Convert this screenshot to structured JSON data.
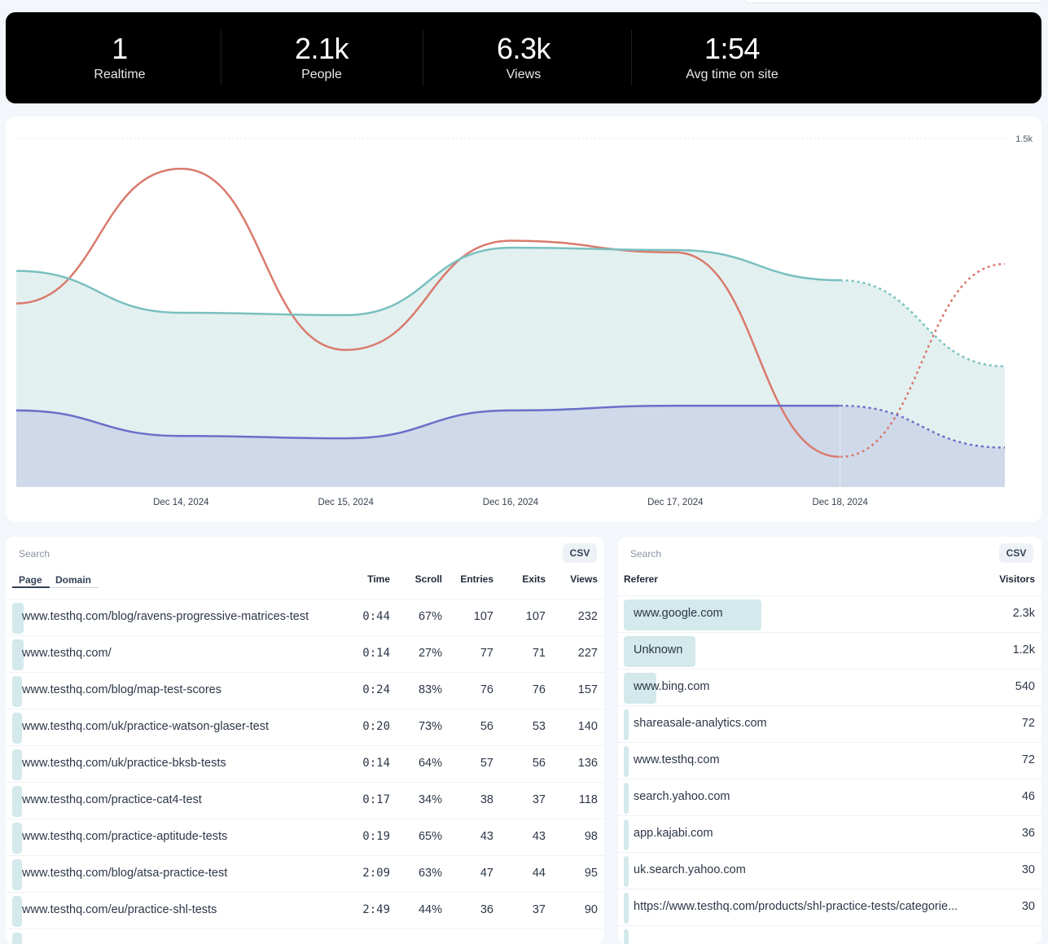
{
  "stats": [
    {
      "value": "1",
      "label": "Realtime"
    },
    {
      "value": "2.1k",
      "label": "People"
    },
    {
      "value": "6.3k",
      "label": "Views"
    },
    {
      "value": "1:54",
      "label": "Avg time on site"
    }
  ],
  "chart_data": {
    "type": "line",
    "y_tick_label": "1.5k",
    "ylim": [
      0,
      1500
    ],
    "x_labels": [
      "Dec 14, 2024",
      "Dec 15, 2024",
      "Dec 16, 2024",
      "Dec 17, 2024",
      "Dec 18, 2024"
    ],
    "x_index": [
      0,
      1,
      2,
      3,
      4,
      5,
      6
    ],
    "series": [
      {
        "color": "#d97a6c",
        "fill": false,
        "values": [
          790,
          1370,
          590,
          1060,
          1010,
          130,
          960
        ]
      },
      {
        "color": "#79c0bf",
        "fill": true,
        "fill_color": "#e3f0f0",
        "values": [
          930,
          750,
          740,
          1030,
          1020,
          890,
          520
        ]
      },
      {
        "color": "#6a6fc8",
        "fill": true,
        "fill_color": "#cfd9e9",
        "values": [
          330,
          220,
          210,
          330,
          350,
          350,
          170
        ]
      }
    ],
    "dashed_from_index": 5,
    "grid": "dotted top line"
  },
  "pages": {
    "search_placeholder": "Search",
    "csv_label": "CSV",
    "tabs": [
      "Page",
      "Domain"
    ],
    "columns": {
      "time": "Time",
      "scroll": "Scroll",
      "entries": "Entries",
      "exits": "Exits",
      "views": "Views"
    },
    "rows": [
      {
        "path": "www.testhq.com/blog/ravens-progressive-matrices-test",
        "time": "0:44",
        "scroll": "67%",
        "entries": "107",
        "exits": "107",
        "views": "232",
        "share": 0.0195
      },
      {
        "path": "www.testhq.com/",
        "time": "0:14",
        "scroll": "27%",
        "entries": "77",
        "exits": "71",
        "views": "227",
        "share": 0.019
      },
      {
        "path": "www.testhq.com/blog/map-test-scores",
        "time": "0:24",
        "scroll": "83%",
        "entries": "76",
        "exits": "76",
        "views": "157",
        "share": 0.013
      },
      {
        "path": "www.testhq.com/uk/practice-watson-glaser-test",
        "time": "0:20",
        "scroll": "73%",
        "entries": "56",
        "exits": "53",
        "views": "140",
        "share": 0.0115
      },
      {
        "path": "www.testhq.com/uk/practice-bksb-tests",
        "time": "0:14",
        "scroll": "64%",
        "entries": "57",
        "exits": "56",
        "views": "136",
        "share": 0.011
      },
      {
        "path": "www.testhq.com/practice-cat4-test",
        "time": "0:17",
        "scroll": "34%",
        "entries": "38",
        "exits": "37",
        "views": "118",
        "share": 0.0105
      },
      {
        "path": "www.testhq.com/practice-aptitude-tests",
        "time": "0:19",
        "scroll": "65%",
        "entries": "43",
        "exits": "43",
        "views": "98",
        "share": 0.0095
      },
      {
        "path": "www.testhq.com/blog/atsa-practice-test",
        "time": "2:09",
        "scroll": "63%",
        "entries": "47",
        "exits": "44",
        "views": "95",
        "share": 0.009
      },
      {
        "path": "www.testhq.com/eu/practice-shl-tests",
        "time": "2:49",
        "scroll": "44%",
        "entries": "36",
        "exits": "37",
        "views": "90",
        "share": 0.009
      },
      {
        "path": "",
        "time": "",
        "scroll": "",
        "entries": "",
        "exits": "",
        "views": "",
        "share": 0.009
      }
    ]
  },
  "referrers": {
    "search_placeholder": "Search",
    "csv_label": "CSV",
    "columns": {
      "referer": "Referer",
      "visitors": "Visitors"
    },
    "rows": [
      {
        "name": "www.google.com",
        "visitors": "2.3k",
        "share": 0.325
      },
      {
        "name": "Unknown",
        "visitors": "1.2k",
        "share": 0.17
      },
      {
        "name": "www.bing.com",
        "visitors": "540",
        "share": 0.076
      },
      {
        "name": "shareasale-analytics.com",
        "visitors": "72",
        "share": 0.012
      },
      {
        "name": "www.testhq.com",
        "visitors": "72",
        "share": 0.012
      },
      {
        "name": "search.yahoo.com",
        "visitors": "46",
        "share": 0.008
      },
      {
        "name": "app.kajabi.com",
        "visitors": "36",
        "share": 0.007
      },
      {
        "name": "uk.search.yahoo.com",
        "visitors": "30",
        "share": 0.006
      },
      {
        "name": "https://www.testhq.com/products/shl-practice-tests/categorie...",
        "visitors": "30",
        "share": 0.006
      },
      {
        "name": "",
        "visitors": "",
        "share": 0.006
      }
    ]
  }
}
